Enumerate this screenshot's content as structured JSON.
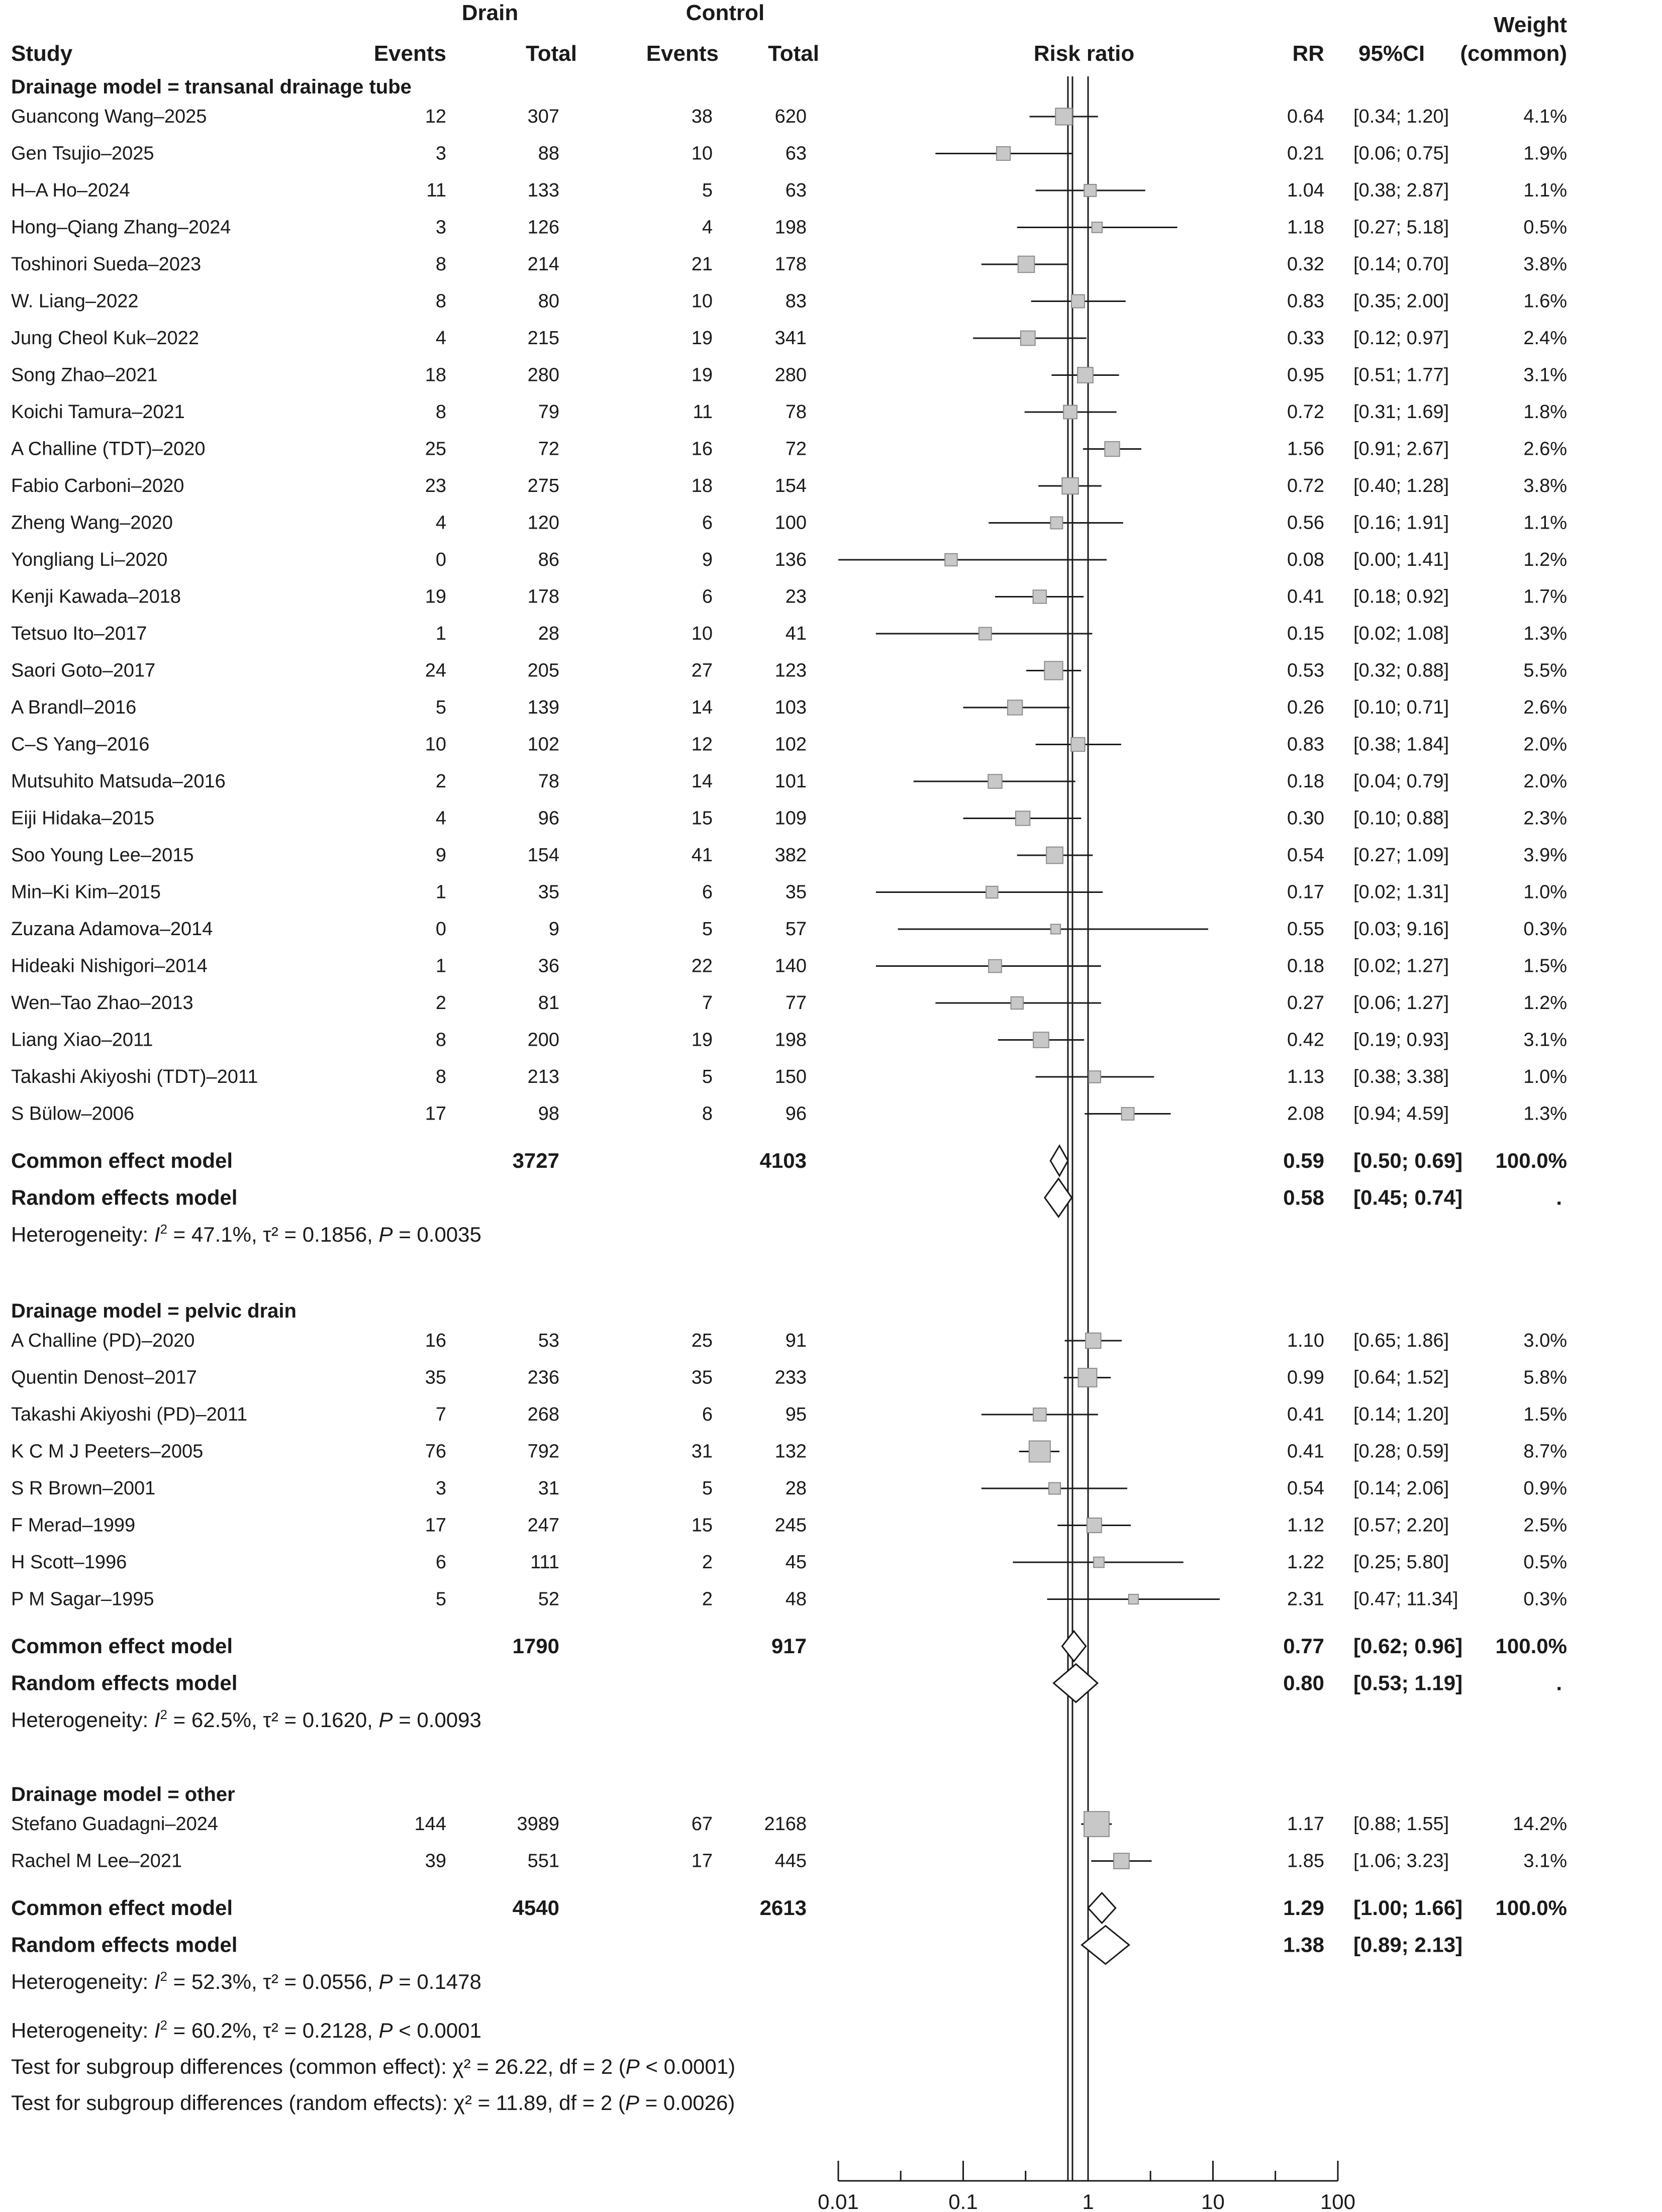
{
  "chart_data": {
    "type": "forest",
    "x_scale": "log",
    "xlim": [
      0.01,
      100
    ],
    "x_ticks": [
      "0.01",
      "0.1",
      "1",
      "10",
      "100"
    ],
    "x_tick_values": [
      0.01,
      0.1,
      1,
      10,
      100
    ],
    "reference_lines": {
      "null_effect": 1,
      "common_effect_overall": 0.69,
      "random_effect_overall": 0.75
    },
    "headers": {
      "drain": "Drain",
      "control": "Control",
      "weight_line1": "Weight",
      "weight_line2": "(common)",
      "study": "Study",
      "events": "Events",
      "total": "Total",
      "risk_ratio": "Risk ratio",
      "rr": "RR",
      "ci": "95%CI"
    },
    "subgroups": [
      {
        "title": "Drainage model = transanal drainage tube",
        "studies": [
          {
            "study": "Guancong Wang–2025",
            "e1": "12",
            "n1": "307",
            "e2": "38",
            "n2": "620",
            "rr": 0.64,
            "lo": 0.34,
            "hi": 1.2,
            "rr_text": "0.64",
            "ci_text": "[0.34;  1.20]",
            "weight_text": "4.1%",
            "weight": 4.1
          },
          {
            "study": "Gen Tsujio–2025",
            "e1": "3",
            "n1": "88",
            "e2": "10",
            "n2": "63",
            "rr": 0.21,
            "lo": 0.06,
            "hi": 0.75,
            "rr_text": "0.21",
            "ci_text": "[0.06;  0.75]",
            "weight_text": "1.9%",
            "weight": 1.9
          },
          {
            "study": "H–A Ho–2024",
            "e1": "11",
            "n1": "133",
            "e2": "5",
            "n2": "63",
            "rr": 1.04,
            "lo": 0.38,
            "hi": 2.87,
            "rr_text": "1.04",
            "ci_text": "[0.38;  2.87]",
            "weight_text": "1.1%",
            "weight": 1.1
          },
          {
            "study": "Hong–Qiang Zhang–2024",
            "e1": "3",
            "n1": "126",
            "e2": "4",
            "n2": "198",
            "rr": 1.18,
            "lo": 0.27,
            "hi": 5.18,
            "rr_text": "1.18",
            "ci_text": "[0.27;  5.18]",
            "weight_text": "0.5%",
            "weight": 0.5
          },
          {
            "study": "Toshinori Sueda–2023",
            "e1": "8",
            "n1": "214",
            "e2": "21",
            "n2": "178",
            "rr": 0.32,
            "lo": 0.14,
            "hi": 0.7,
            "rr_text": "0.32",
            "ci_text": "[0.14;  0.70]",
            "weight_text": "3.8%",
            "weight": 3.8
          },
          {
            "study": "W. Liang–2022",
            "e1": "8",
            "n1": "80",
            "e2": "10",
            "n2": "83",
            "rr": 0.83,
            "lo": 0.35,
            "hi": 2.0,
            "rr_text": "0.83",
            "ci_text": "[0.35;  2.00]",
            "weight_text": "1.6%",
            "weight": 1.6
          },
          {
            "study": "Jung Cheol Kuk–2022",
            "e1": "4",
            "n1": "215",
            "e2": "19",
            "n2": "341",
            "rr": 0.33,
            "lo": 0.12,
            "hi": 0.97,
            "rr_text": "0.33",
            "ci_text": "[0.12;  0.97]",
            "weight_text": "2.4%",
            "weight": 2.4
          },
          {
            "study": "Song Zhao–2021",
            "e1": "18",
            "n1": "280",
            "e2": "19",
            "n2": "280",
            "rr": 0.95,
            "lo": 0.51,
            "hi": 1.77,
            "rr_text": "0.95",
            "ci_text": "[0.51;  1.77]",
            "weight_text": "3.1%",
            "weight": 3.1
          },
          {
            "study": "Koichi Tamura–2021",
            "e1": "8",
            "n1": "79",
            "e2": "11",
            "n2": "78",
            "rr": 0.72,
            "lo": 0.31,
            "hi": 1.69,
            "rr_text": "0.72",
            "ci_text": "[0.31;  1.69]",
            "weight_text": "1.8%",
            "weight": 1.8
          },
          {
            "study": "A Challine (TDT)–2020",
            "e1": "25",
            "n1": "72",
            "e2": "16",
            "n2": "72",
            "rr": 1.56,
            "lo": 0.91,
            "hi": 2.67,
            "rr_text": "1.56",
            "ci_text": "[0.91;  2.67]",
            "weight_text": "2.6%",
            "weight": 2.6
          },
          {
            "study": "Fabio Carboni–2020",
            "e1": "23",
            "n1": "275",
            "e2": "18",
            "n2": "154",
            "rr": 0.72,
            "lo": 0.4,
            "hi": 1.28,
            "rr_text": "0.72",
            "ci_text": "[0.40;  1.28]",
            "weight_text": "3.8%",
            "weight": 3.8
          },
          {
            "study": "Zheng Wang–2020",
            "e1": "4",
            "n1": "120",
            "e2": "6",
            "n2": "100",
            "rr": 0.56,
            "lo": 0.16,
            "hi": 1.91,
            "rr_text": "0.56",
            "ci_text": "[0.16;  1.91]",
            "weight_text": "1.1%",
            "weight": 1.1
          },
          {
            "study": "Yongliang Li–2020",
            "e1": "0",
            "n1": "86",
            "e2": "9",
            "n2": "136",
            "rr": 0.08,
            "lo": 0.0,
            "hi": 1.41,
            "rr_text": "0.08",
            "ci_text": "[0.00;  1.41]",
            "weight_text": "1.2%",
            "weight": 1.2
          },
          {
            "study": "Kenji Kawada–2018",
            "e1": "19",
            "n1": "178",
            "e2": "6",
            "n2": "23",
            "rr": 0.41,
            "lo": 0.18,
            "hi": 0.92,
            "rr_text": "0.41",
            "ci_text": "[0.18;  0.92]",
            "weight_text": "1.7%",
            "weight": 1.7
          },
          {
            "study": "Tetsuo Ito–2017",
            "e1": "1",
            "n1": "28",
            "e2": "10",
            "n2": "41",
            "rr": 0.15,
            "lo": 0.02,
            "hi": 1.08,
            "rr_text": "0.15",
            "ci_text": "[0.02;  1.08]",
            "weight_text": "1.3%",
            "weight": 1.3
          },
          {
            "study": "Saori Goto–2017",
            "e1": "24",
            "n1": "205",
            "e2": "27",
            "n2": "123",
            "rr": 0.53,
            "lo": 0.32,
            "hi": 0.88,
            "rr_text": "0.53",
            "ci_text": "[0.32;  0.88]",
            "weight_text": "5.5%",
            "weight": 5.5
          },
          {
            "study": "A Brandl–2016",
            "e1": "5",
            "n1": "139",
            "e2": "14",
            "n2": "103",
            "rr": 0.26,
            "lo": 0.1,
            "hi": 0.71,
            "rr_text": "0.26",
            "ci_text": "[0.10;  0.71]",
            "weight_text": "2.6%",
            "weight": 2.6
          },
          {
            "study": "C–S Yang–2016",
            "e1": "10",
            "n1": "102",
            "e2": "12",
            "n2": "102",
            "rr": 0.83,
            "lo": 0.38,
            "hi": 1.84,
            "rr_text": "0.83",
            "ci_text": "[0.38;  1.84]",
            "weight_text": "2.0%",
            "weight": 2.0
          },
          {
            "study": "Mutsuhito Matsuda–2016",
            "e1": "2",
            "n1": "78",
            "e2": "14",
            "n2": "101",
            "rr": 0.18,
            "lo": 0.04,
            "hi": 0.79,
            "rr_text": "0.18",
            "ci_text": "[0.04;  0.79]",
            "weight_text": "2.0%",
            "weight": 2.0
          },
          {
            "study": "Eiji Hidaka–2015",
            "e1": "4",
            "n1": "96",
            "e2": "15",
            "n2": "109",
            "rr": 0.3,
            "lo": 0.1,
            "hi": 0.88,
            "rr_text": "0.30",
            "ci_text": "[0.10;  0.88]",
            "weight_text": "2.3%",
            "weight": 2.3
          },
          {
            "study": "Soo Young Lee–2015",
            "e1": "9",
            "n1": "154",
            "e2": "41",
            "n2": "382",
            "rr": 0.54,
            "lo": 0.27,
            "hi": 1.09,
            "rr_text": "0.54",
            "ci_text": "[0.27;  1.09]",
            "weight_text": "3.9%",
            "weight": 3.9
          },
          {
            "study": "Min–Ki Kim–2015",
            "e1": "1",
            "n1": "35",
            "e2": "6",
            "n2": "35",
            "rr": 0.17,
            "lo": 0.02,
            "hi": 1.31,
            "rr_text": "0.17",
            "ci_text": "[0.02;  1.31]",
            "weight_text": "1.0%",
            "weight": 1.0
          },
          {
            "study": "Zuzana Adamova–2014",
            "e1": "0",
            "n1": "9",
            "e2": "5",
            "n2": "57",
            "rr": 0.55,
            "lo": 0.03,
            "hi": 9.16,
            "rr_text": "0.55",
            "ci_text": "[0.03;  9.16]",
            "weight_text": "0.3%",
            "weight": 0.3
          },
          {
            "study": "Hideaki Nishigori–2014",
            "e1": "1",
            "n1": "36",
            "e2": "22",
            "n2": "140",
            "rr": 0.18,
            "lo": 0.02,
            "hi": 1.27,
            "rr_text": "0.18",
            "ci_text": "[0.02;  1.27]",
            "weight_text": "1.5%",
            "weight": 1.5
          },
          {
            "study": "Wen–Tao Zhao–2013",
            "e1": "2",
            "n1": "81",
            "e2": "7",
            "n2": "77",
            "rr": 0.27,
            "lo": 0.06,
            "hi": 1.27,
            "rr_text": "0.27",
            "ci_text": "[0.06;  1.27]",
            "weight_text": "1.2%",
            "weight": 1.2
          },
          {
            "study": "Liang Xiao–2011",
            "e1": "8",
            "n1": "200",
            "e2": "19",
            "n2": "198",
            "rr": 0.42,
            "lo": 0.19,
            "hi": 0.93,
            "rr_text": "0.42",
            "ci_text": "[0.19;  0.93]",
            "weight_text": "3.1%",
            "weight": 3.1
          },
          {
            "study": "Takashi Akiyoshi (TDT)–2011",
            "e1": "8",
            "n1": "213",
            "e2": "5",
            "n2": "150",
            "rr": 1.13,
            "lo": 0.38,
            "hi": 3.38,
            "rr_text": "1.13",
            "ci_text": "[0.38;  3.38]",
            "weight_text": "1.0%",
            "weight": 1.0
          },
          {
            "study": "S Bülow–2006",
            "e1": "17",
            "n1": "98",
            "e2": "8",
            "n2": "96",
            "rr": 2.08,
            "lo": 0.94,
            "hi": 4.59,
            "rr_text": "2.08",
            "ci_text": "[0.94;  4.59]",
            "weight_text": "1.3%",
            "weight": 1.3
          }
        ],
        "common": {
          "label": "Common effect model",
          "n1": "3727",
          "n2": "4103",
          "rr": 0.59,
          "lo": 0.5,
          "hi": 0.69,
          "rr_text": "0.59",
          "ci_text": "[0.50;  0.69]",
          "weight_text": "100.0%"
        },
        "random": {
          "label": "Random effects model",
          "rr": 0.58,
          "lo": 0.45,
          "hi": 0.74,
          "rr_text": "0.58",
          "ci_text": "[0.45;  0.74]",
          "weight_text": "."
        },
        "heterogeneity": {
          "prefix": "Heterogeneity: ",
          "i2_symbol": "I",
          "i2_sup": "2",
          "i2_value": " = 47.1%, τ² = 0.1856, ",
          "p_symbol": "P",
          "p_value": " = 0.0035"
        }
      },
      {
        "title": "Drainage model = pelvic drain",
        "studies": [
          {
            "study": "A Challine (PD)–2020",
            "e1": "16",
            "n1": "53",
            "e2": "25",
            "n2": "91",
            "rr": 1.1,
            "lo": 0.65,
            "hi": 1.86,
            "rr_text": "1.10",
            "ci_text": "[0.65;  1.86]",
            "weight_text": "3.0%",
            "weight": 3.0
          },
          {
            "study": "Quentin Denost–2017",
            "e1": "35",
            "n1": "236",
            "e2": "35",
            "n2": "233",
            "rr": 0.99,
            "lo": 0.64,
            "hi": 1.52,
            "rr_text": "0.99",
            "ci_text": "[0.64;  1.52]",
            "weight_text": "5.8%",
            "weight": 5.8
          },
          {
            "study": "Takashi Akiyoshi (PD)–2011",
            "e1": "7",
            "n1": "268",
            "e2": "6",
            "n2": "95",
            "rr": 0.41,
            "lo": 0.14,
            "hi": 1.2,
            "rr_text": "0.41",
            "ci_text": "[0.14;  1.20]",
            "weight_text": "1.5%",
            "weight": 1.5
          },
          {
            "study": "K C M J Peeters–2005",
            "e1": "76",
            "n1": "792",
            "e2": "31",
            "n2": "132",
            "rr": 0.41,
            "lo": 0.28,
            "hi": 0.59,
            "rr_text": "0.41",
            "ci_text": "[0.28;  0.59]",
            "weight_text": "8.7%",
            "weight": 8.7
          },
          {
            "study": "S R Brown–2001",
            "e1": "3",
            "n1": "31",
            "e2": "5",
            "n2": "28",
            "rr": 0.54,
            "lo": 0.14,
            "hi": 2.06,
            "rr_text": "0.54",
            "ci_text": "[0.14;  2.06]",
            "weight_text": "0.9%",
            "weight": 0.9
          },
          {
            "study": "F Merad–1999",
            "e1": "17",
            "n1": "247",
            "e2": "15",
            "n2": "245",
            "rr": 1.12,
            "lo": 0.57,
            "hi": 2.2,
            "rr_text": "1.12",
            "ci_text": "[0.57;  2.20]",
            "weight_text": "2.5%",
            "weight": 2.5
          },
          {
            "study": "H Scott–1996",
            "e1": "6",
            "n1": "111",
            "e2": "2",
            "n2": "45",
            "rr": 1.22,
            "lo": 0.25,
            "hi": 5.8,
            "rr_text": "1.22",
            "ci_text": "[0.25;  5.80]",
            "weight_text": "0.5%",
            "weight": 0.5
          },
          {
            "study": "P M Sagar–1995",
            "e1": "5",
            "n1": "52",
            "e2": "2",
            "n2": "48",
            "rr": 2.31,
            "lo": 0.47,
            "hi": 11.34,
            "rr_text": "2.31",
            "ci_text": "[0.47; 11.34]",
            "weight_text": "0.3%",
            "weight": 0.3
          }
        ],
        "common": {
          "label": "Common effect model",
          "n1": "1790",
          "n2": "917",
          "rr": 0.77,
          "lo": 0.62,
          "hi": 0.96,
          "rr_text": "0.77",
          "ci_text": "[0.62;  0.96]",
          "weight_text": "100.0%"
        },
        "random": {
          "label": "Random effects model",
          "rr": 0.8,
          "lo": 0.53,
          "hi": 1.19,
          "rr_text": "0.80",
          "ci_text": "[0.53;  1.19]",
          "weight_text": "."
        },
        "heterogeneity": {
          "prefix": "Heterogeneity: ",
          "i2_symbol": "I",
          "i2_sup": "2",
          "i2_value": " = 62.5%, τ² = 0.1620, ",
          "p_symbol": "P",
          "p_value": " = 0.0093"
        }
      },
      {
        "title": "Drainage model = other",
        "studies": [
          {
            "study": "Stefano Guadagni–2024",
            "e1": "144",
            "n1": "3989",
            "e2": "67",
            "n2": "2168",
            "rr": 1.17,
            "lo": 0.88,
            "hi": 1.55,
            "rr_text": "1.17",
            "ci_text": "[0.88;  1.55]",
            "weight_text": "14.2%",
            "weight": 14.2
          },
          {
            "study": "Rachel M Lee–2021",
            "e1": "39",
            "n1": "551",
            "e2": "17",
            "n2": "445",
            "rr": 1.85,
            "lo": 1.06,
            "hi": 3.23,
            "rr_text": "1.85",
            "ci_text": "[1.06;  3.23]",
            "weight_text": "3.1%",
            "weight": 3.1
          }
        ],
        "common": {
          "label": "Common effect model",
          "n1": "4540",
          "n2": "2613",
          "rr": 1.29,
          "lo": 1.0,
          "hi": 1.66,
          "rr_text": "1.29",
          "ci_text": "[1.00;  1.66]",
          "weight_text": "100.0%"
        },
        "random": {
          "label": "Random effects model",
          "rr": 1.38,
          "lo": 0.89,
          "hi": 2.13,
          "rr_text": "1.38",
          "ci_text": "[0.89;  2.13]",
          "weight_text": ""
        },
        "heterogeneity": {
          "prefix": "Heterogeneity: ",
          "i2_symbol": "I",
          "i2_sup": "2",
          "i2_value": " = 52.3%, τ² = 0.0556, ",
          "p_symbol": "P",
          "p_value": " = 0.1478"
        }
      }
    ],
    "overall_heterogeneity": {
      "prefix": "Heterogeneity: ",
      "i2_symbol": "I",
      "i2_sup": "2",
      "i2_value": " = 60.2%, τ² = 0.2128, ",
      "p_symbol": "P",
      "p_value": " < 0.0001"
    },
    "subgroup_tests": [
      {
        "text": "Test for subgroup differences (common effect): χ² = 26.22, df = 2 (",
        "p_symbol": "P",
        "p_text": " < 0.0001)"
      },
      {
        "text": "Test for subgroup differences (random effects): χ² = 11.89, df = 2 (",
        "p_symbol": "P",
        "p_text": " = 0.0026)"
      }
    ]
  }
}
